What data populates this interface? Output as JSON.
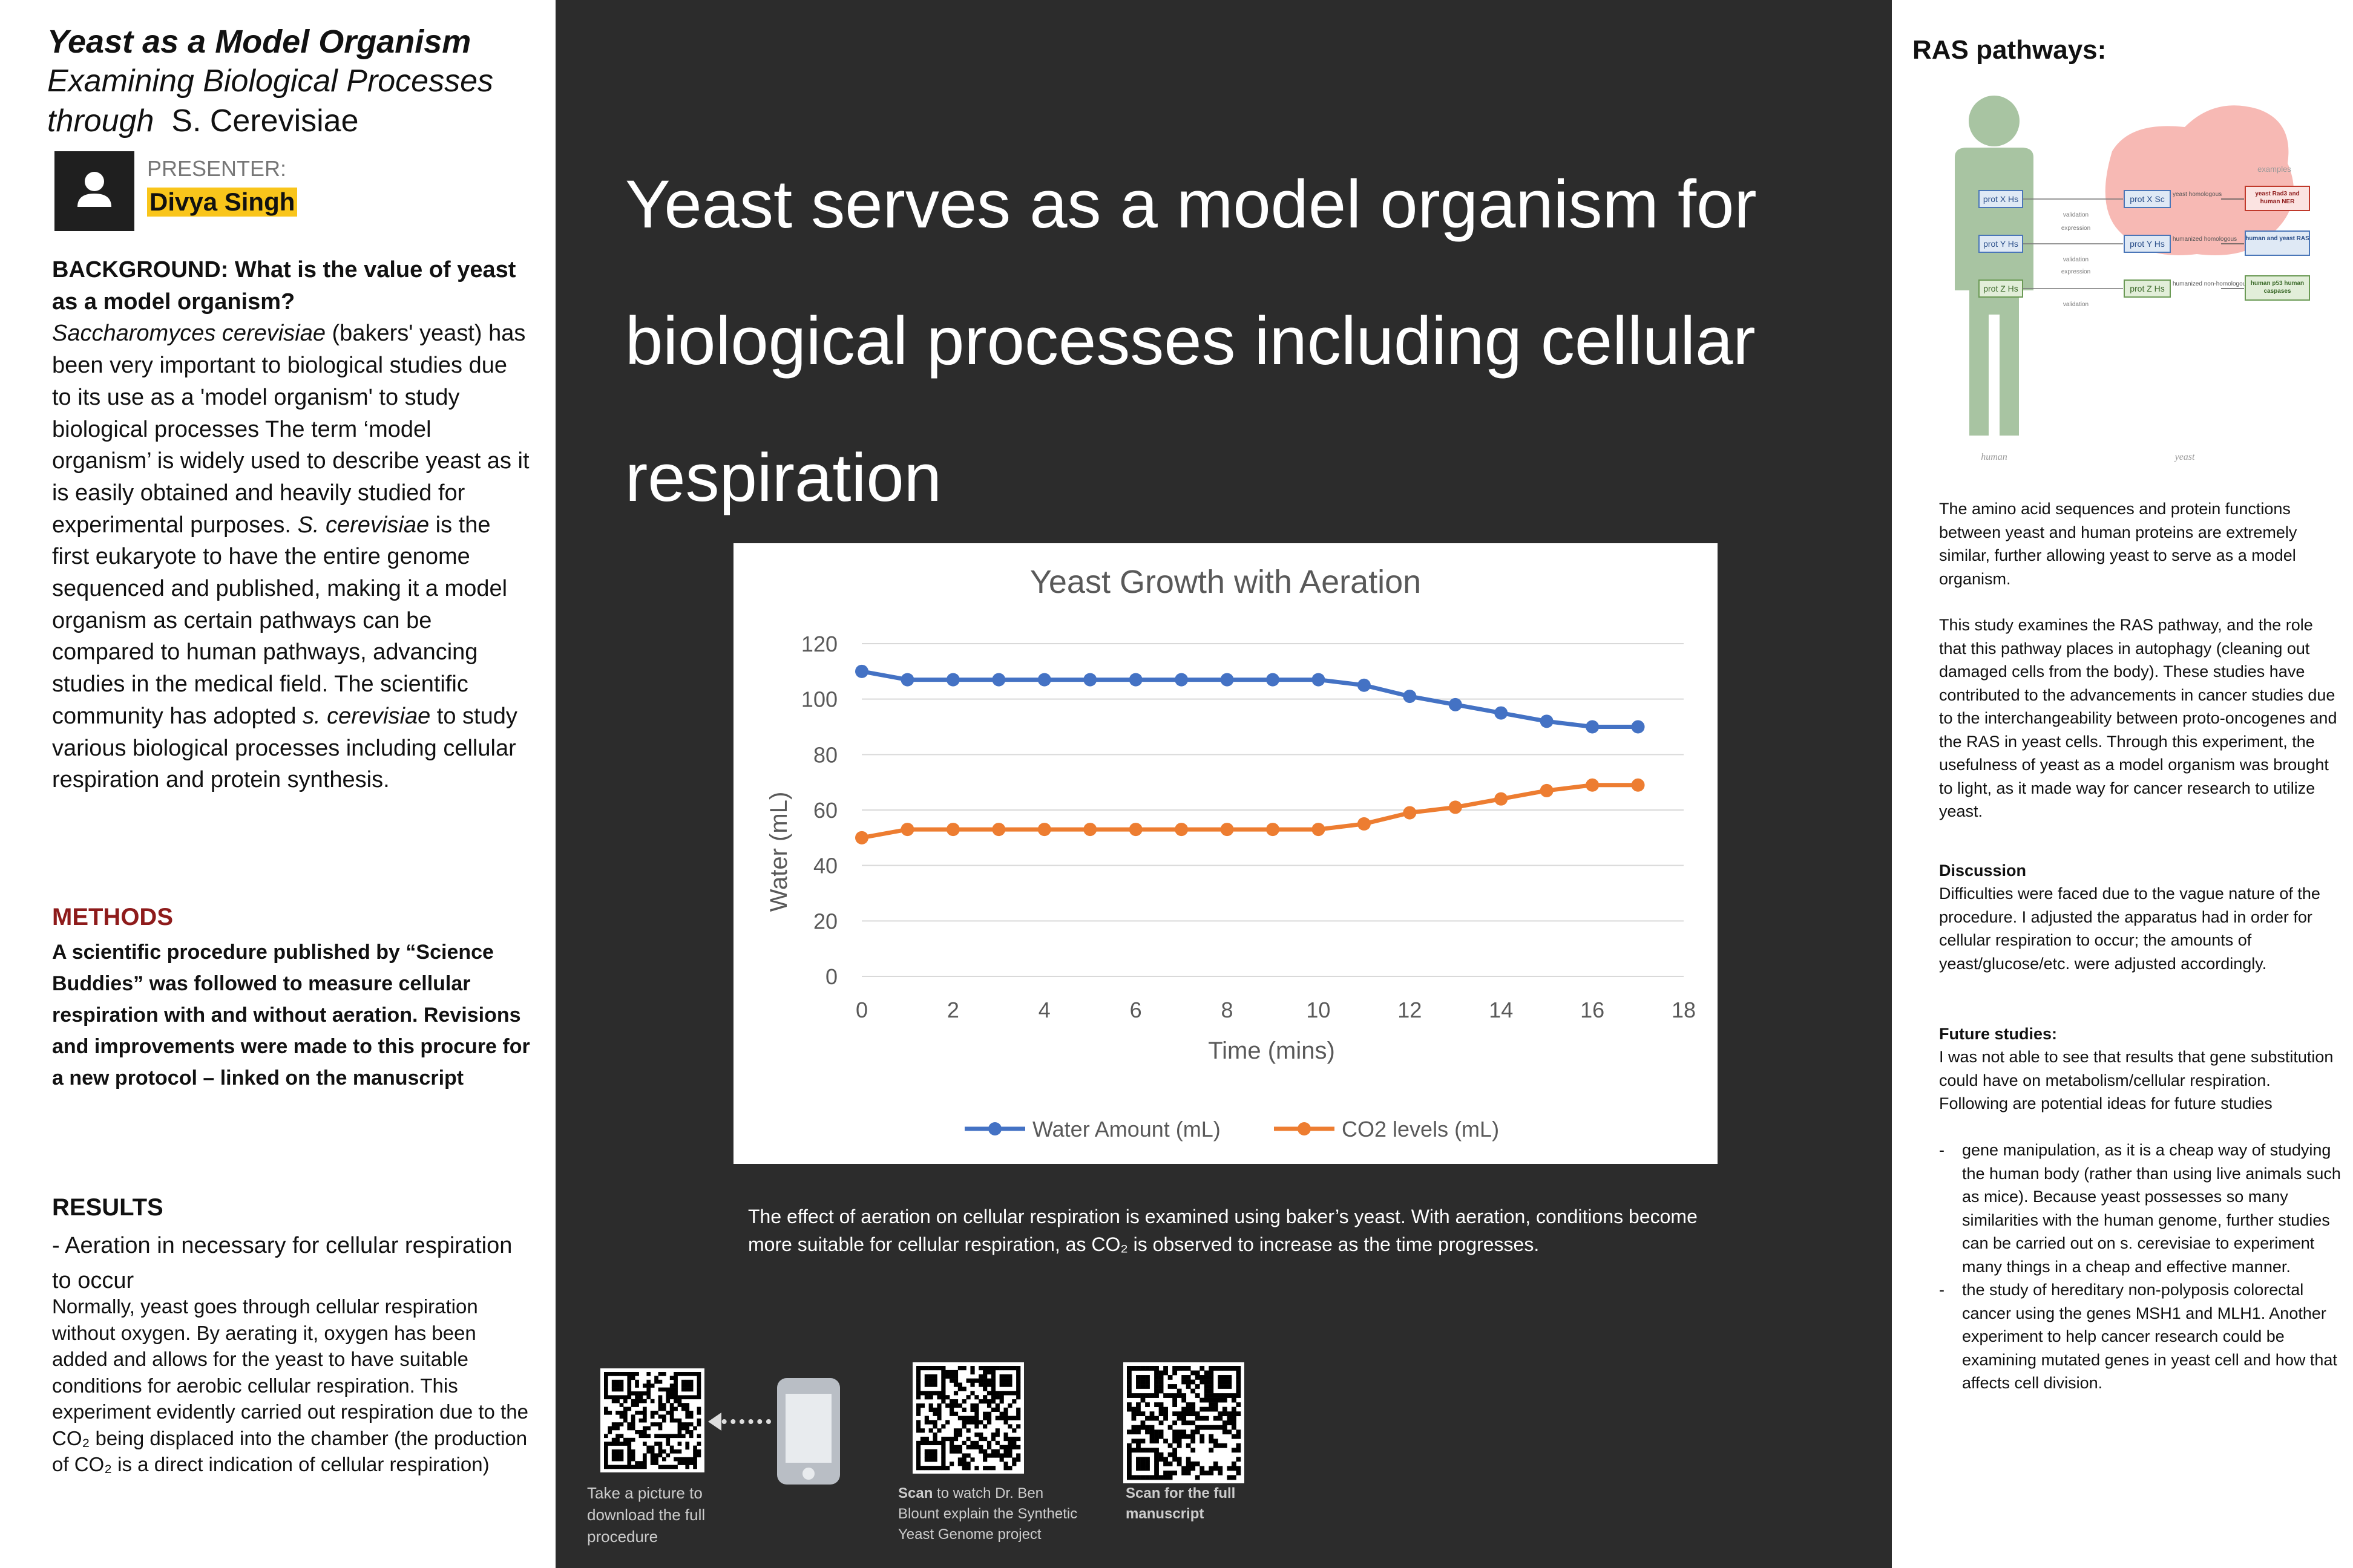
{
  "left": {
    "title_line1": "Yeast as a Model Organism",
    "title_line2": "Examining Biological Processes",
    "title_line3_a": "through",
    "title_line3_b": "S. Cerevisiae",
    "presenter_label": "PRESENTER:",
    "presenter_name": "Divya Singh",
    "background_heading": "BACKGROUND: What is the value of yeast as a model organism?",
    "background_p1_italic": "Saccharomyces cerevisiae",
    "background_p1": " (bakers' yeast) has been very important to biological studies due to its use as a 'model organism' to study biological processes The term ‘model organism’ is widely used to describe yeast as it is easily obtained and heavily studied for experimental purposes. ",
    "background_p2_italic": "S. cerevisiae",
    "background_p2": " is the first eukaryote to have the entire genome sequenced and published, making it a model organism as certain pathways can be compared to human pathways, advancing studies in the medical field. The scientific community has adopted ",
    "background_p3_italic": "s. cerevisiae",
    "background_p3": " to study various biological processes including cellular respiration and protein synthesis.",
    "methods_heading": "METHODS",
    "methods_text": "A scientific procedure published by “Science Buddies” was followed to measure cellular respiration with and without aeration. Revisions and improvements were made to this procure for a new protocol – linked on the manuscript",
    "results_heading": "RESULTS",
    "results_sub": "- Aeration in necessary for cellular respiration to occur",
    "results_text": "Normally, yeast goes through cellular respiration without oxygen. By aerating it, oxygen has been added and allows for the yeast to have suitable conditions for aerobic cellular respiration. This experiment evidently carried out respiration due to the CO₂ being displaced into the chamber (the production of CO₂ is a direct indication of cellular respiration)"
  },
  "middle": {
    "headline": "Yeast serves as a model organism for biological processes including cellular respiration",
    "caption": "The effect of aeration on cellular respiration is examined using baker’s yeast. With aeration, conditions become more suitable for cellular respiration, as CO₂ is observed to increase as the time progresses.",
    "qr1_caption": "Take a picture to download the full procedure",
    "qr2_caption_bold": "Scan",
    "qr2_caption": " to watch Dr. Ben Blount explain the Synthetic Yeast Genome project",
    "qr3_caption": "Scan for the full manuscript",
    "icons": [
      "qr-code-icon",
      "arrow-left-icon",
      "phone-icon"
    ]
  },
  "chart_data": {
    "type": "line",
    "title": "Yeast Growth with Aeration",
    "xlabel": "Time (mins)",
    "ylabel": "Water (mL)",
    "xlim": [
      0,
      18
    ],
    "ylim": [
      0,
      120
    ],
    "x_ticks": [
      0,
      2,
      4,
      6,
      8,
      10,
      12,
      14,
      16,
      18
    ],
    "y_ticks": [
      0,
      20,
      40,
      60,
      80,
      100,
      120
    ],
    "grid": true,
    "legend_position": "bottom",
    "x": [
      0,
      1,
      2,
      3,
      4,
      5,
      6,
      7,
      8,
      9,
      10,
      11,
      12,
      13,
      14,
      15,
      16,
      17
    ],
    "series": [
      {
        "name": "Water Amount (mL)",
        "color": "#4472c4",
        "values": [
          110,
          107,
          107,
          107,
          107,
          107,
          107,
          107,
          107,
          107,
          107,
          105,
          101,
          98,
          95,
          92,
          90,
          90
        ]
      },
      {
        "name": "CO2 levels (mL)",
        "color": "#ed7d31",
        "values": [
          50,
          53,
          53,
          53,
          53,
          53,
          53,
          53,
          53,
          53,
          53,
          55,
          59,
          61,
          64,
          67,
          69,
          69
        ]
      }
    ]
  },
  "right": {
    "ras_heading": "RAS pathways:",
    "diagram": {
      "examples_label": "examples",
      "human_label": "human",
      "yeast_label": "yeast",
      "human_prots": [
        "prot X Hs",
        "prot Y Hs",
        "prot Z Hs"
      ],
      "yeast_prots": [
        "prot X Sc",
        "prot Y Hs",
        "prot Z Hs"
      ],
      "relations": [
        "yeast homologous",
        "humanized homologous",
        "humanized non-homologous"
      ],
      "arrows": [
        "validation",
        "expression",
        "validation",
        "expression",
        "validation"
      ],
      "examples": [
        "yeast Rad3 and human NER",
        "human and yeast RAS",
        "human p53 human caspases"
      ]
    },
    "p1": "The amino acid sequences and protein functions between yeast and human proteins are extremely similar, further allowing yeast to serve as a model organism.",
    "p2": "This study examines the RAS pathway, and the role that this pathway places in autophagy (cleaning out damaged cells from the body). These studies have contributed to the advancements in cancer studies due to the interchangeability between proto-oncogenes and the RAS in yeast cells. Through this experiment, the usefulness of yeast as a model organism was brought to light, as it made way for cancer research to utilize yeast.",
    "discussion_heading": "Discussion",
    "discussion_text": "Difficulties were faced due to the vague nature of the procedure. I adjusted the apparatus had in order for cellular respiration to occur; the amounts of yeast/glucose/etc. were adjusted accordingly.",
    "future_heading": "Future studies:",
    "future_text": "I was not able to see that results that gene substitution could have on metabolism/cellular respiration. Following are potential ideas for future studies",
    "future_items": [
      "gene manipulation, as it is a cheap way of studying the human body (rather than using live animals such as mice). Because yeast possesses so many similarities with the human genome, further studies can be carried out on s. cerevisiae to experiment many things in a cheap and effective manner.",
      "the study of hereditary non-polyposis colorectal cancer using the genes MSH1 and MLH1. Another experiment to help cancer research could be examining mutated genes in yeast cell and how that affects cell division."
    ]
  }
}
